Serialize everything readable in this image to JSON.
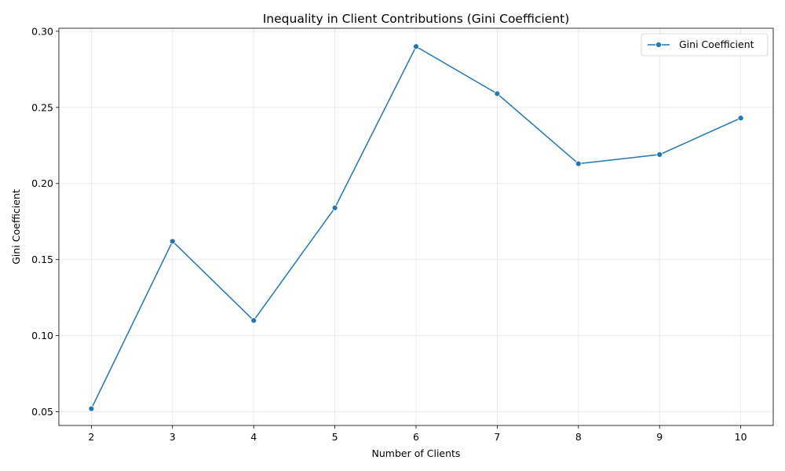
{
  "chart_data": {
    "type": "line",
    "title": "Inequality in Client Contributions (Gini Coefficient)",
    "xlabel": "Number of Clients",
    "ylabel": "Gini Coefficient",
    "x": [
      2,
      3,
      4,
      5,
      6,
      7,
      8,
      9,
      10
    ],
    "series": [
      {
        "name": "Gini Coefficient",
        "values": [
          0.052,
          0.162,
          0.11,
          0.184,
          0.29,
          0.259,
          0.213,
          0.219,
          0.243
        ],
        "color": "#1f77b4",
        "marker": "circle"
      }
    ],
    "xlim": [
      1.6,
      10.4
    ],
    "ylim": [
      0.041,
      0.302
    ],
    "xticks": [
      2,
      3,
      4,
      5,
      6,
      7,
      8,
      9,
      10
    ],
    "yticks": [
      0.05,
      0.1,
      0.15,
      0.2,
      0.25,
      0.3
    ],
    "ytick_labels": [
      "0.05",
      "0.10",
      "0.15",
      "0.20",
      "0.25",
      "0.30"
    ],
    "grid": true,
    "legend_position": "top-right"
  }
}
